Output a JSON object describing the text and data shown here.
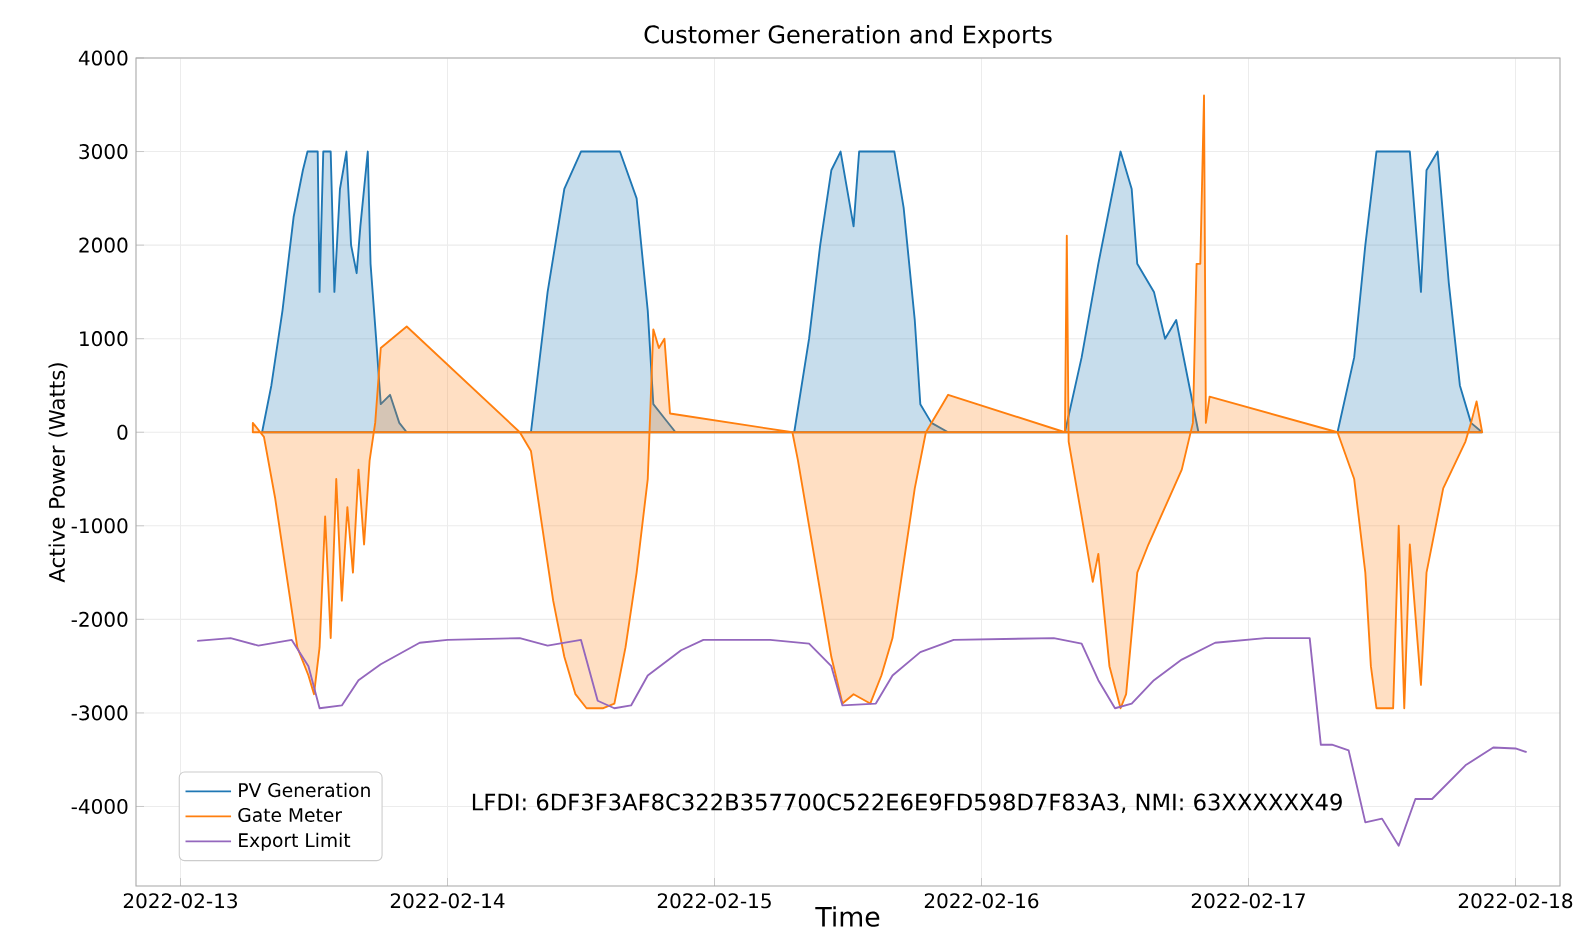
{
  "chart_data": {
    "type": "line",
    "title": "Customer Generation and Exports",
    "xlabel": "Time",
    "ylabel": "Active Power (Watts)",
    "xlim": [
      "2022-02-12T20:00",
      "2022-02-18T04:00"
    ],
    "ylim": [
      -4850,
      4000
    ],
    "xticks": [
      "2022-02-13",
      "2022-02-14",
      "2022-02-15",
      "2022-02-16",
      "2022-02-17",
      "2022-02-18"
    ],
    "yticks": [
      -4000,
      -3000,
      -2000,
      -1000,
      0,
      1000,
      2000,
      3000,
      4000
    ],
    "grid": true,
    "legend": "bottom left",
    "marker": "none",
    "annotations": [
      "LFDI: 6DF3F3AF8C322B357700C522E6E9FD598D7F83A3, NMI: 63XXXXXX49"
    ],
    "series": [
      {
        "name": "PV Generation",
        "type": "area",
        "color": "#1f77b4",
        "x": [
          "2022-02-13T07:20",
          "2022-02-13T08:10",
          "2022-02-13T09:10",
          "2022-02-13T10:10",
          "2022-02-13T11:00",
          "2022-02-13T11:25",
          "2022-02-13T12:20",
          "2022-02-13T12:30",
          "2022-02-13T12:50",
          "2022-02-13T13:30",
          "2022-02-13T13:50",
          "2022-02-13T14:20",
          "2022-02-13T14:55",
          "2022-02-13T15:20",
          "2022-02-13T15:50",
          "2022-02-13T16:10",
          "2022-02-13T16:50",
          "2022-02-13T17:05",
          "2022-02-13T17:35",
          "2022-02-13T18:00",
          "2022-02-13T18:50",
          "2022-02-13T19:40",
          "2022-02-13T20:20",
          "2022-02-14T07:30",
          "2022-02-14T09:00",
          "2022-02-14T10:30",
          "2022-02-14T12:00",
          "2022-02-14T15:30",
          "2022-02-14T17:00",
          "2022-02-14T18:00",
          "2022-02-14T18:30",
          "2022-02-14T19:30",
          "2022-02-14T20:30",
          "2022-02-15T07:10",
          "2022-02-15T08:30",
          "2022-02-15T09:30",
          "2022-02-15T10:30",
          "2022-02-15T11:20",
          "2022-02-15T12:30",
          "2022-02-15T13:00",
          "2022-02-15T16:10",
          "2022-02-15T17:00",
          "2022-02-15T18:00",
          "2022-02-15T18:30",
          "2022-02-15T19:30",
          "2022-02-15T21:00",
          "2022-02-16T07:30",
          "2022-02-16T09:00",
          "2022-02-16T10:30",
          "2022-02-16T12:30",
          "2022-02-16T13:30",
          "2022-02-16T14:00",
          "2022-02-16T15:30",
          "2022-02-16T16:30",
          "2022-02-16T17:30",
          "2022-02-16T18:30",
          "2022-02-16T19:30",
          "2022-02-17T08:00",
          "2022-02-17T09:30",
          "2022-02-17T10:30",
          "2022-02-17T11:30",
          "2022-02-17T14:30",
          "2022-02-17T15:30",
          "2022-02-17T16:00",
          "2022-02-17T17:00",
          "2022-02-17T17:30",
          "2022-02-17T18:00",
          "2022-02-17T19:00",
          "2022-02-17T20:00",
          "2022-02-17T21:00"
        ],
        "values": [
          0,
          500,
          1300,
          2300,
          2800,
          3000,
          3000,
          1500,
          3000,
          3000,
          1500,
          2600,
          3000,
          2000,
          1700,
          2200,
          3000,
          1800,
          1000,
          300,
          400,
          100,
          0,
          0,
          1500,
          2600,
          3000,
          3000,
          2500,
          1300,
          300,
          150,
          0,
          0,
          1000,
          2000,
          2800,
          3000,
          2200,
          3000,
          3000,
          2400,
          1200,
          300,
          100,
          0,
          0,
          800,
          1800,
          3000,
          2600,
          1800,
          1500,
          1000,
          1200,
          600,
          0,
          0,
          800,
          2000,
          3000,
          3000,
          1500,
          2800,
          3000,
          2300,
          1600,
          500,
          100,
          0
        ]
      },
      {
        "name": "Gate Meter",
        "type": "area",
        "color": "#ff7f0e",
        "x": [
          "2022-02-13T06:30",
          "2022-02-13T07:30",
          "2022-02-13T08:30",
          "2022-02-13T09:30",
          "2022-02-13T10:30",
          "2022-02-13T11:30",
          "2022-02-13T12:00",
          "2022-02-13T12:30",
          "2022-02-13T13:00",
          "2022-02-13T13:30",
          "2022-02-13T14:00",
          "2022-02-13T14:30",
          "2022-02-13T15:00",
          "2022-02-13T15:30",
          "2022-02-13T16:00",
          "2022-02-13T16:30",
          "2022-02-13T17:00",
          "2022-02-13T17:30",
          "2022-02-13T18:00",
          "2022-02-13T20:20",
          "2022-02-14T06:30",
          "2022-02-14T07:30",
          "2022-02-14T08:30",
          "2022-02-14T09:30",
          "2022-02-14T10:30",
          "2022-02-14T11:30",
          "2022-02-14T12:30",
          "2022-02-14T14:00",
          "2022-02-14T15:00",
          "2022-02-14T16:00",
          "2022-02-14T17:00",
          "2022-02-14T18:00",
          "2022-02-14T18:30",
          "2022-02-14T19:00",
          "2022-02-14T19:30",
          "2022-02-14T20:00",
          "2022-02-15T07:00",
          "2022-02-15T07:30",
          "2022-02-15T08:30",
          "2022-02-15T09:30",
          "2022-02-15T10:30",
          "2022-02-15T11:30",
          "2022-02-15T12:30",
          "2022-02-15T14:00",
          "2022-02-15T15:00",
          "2022-02-15T16:00",
          "2022-02-15T17:00",
          "2022-02-15T18:00",
          "2022-02-15T19:00",
          "2022-02-15T20:30",
          "2022-02-15T21:00",
          "2022-02-16T07:30",
          "2022-02-16T07:40",
          "2022-02-16T07:50",
          "2022-02-16T09:00",
          "2022-02-16T10:00",
          "2022-02-16T10:30",
          "2022-02-16T11:30",
          "2022-02-16T12:30",
          "2022-02-16T13:00",
          "2022-02-16T14:00",
          "2022-02-16T15:00",
          "2022-02-16T16:30",
          "2022-02-16T18:00",
          "2022-02-16T19:00",
          "2022-02-16T19:20",
          "2022-02-16T19:40",
          "2022-02-16T20:00",
          "2022-02-16T20:10",
          "2022-02-16T20:30",
          "2022-02-17T08:00",
          "2022-02-17T09:30",
          "2022-02-17T10:30",
          "2022-02-17T11:00",
          "2022-02-17T11:30",
          "2022-02-17T13:00",
          "2022-02-17T13:30",
          "2022-02-17T14:00",
          "2022-02-17T14:30",
          "2022-02-17T15:30",
          "2022-02-17T16:00",
          "2022-02-17T17:30",
          "2022-02-17T19:30",
          "2022-02-17T20:00",
          "2022-02-17T20:30",
          "2022-02-17T21:00"
        ],
        "values": [
          100,
          -50,
          -700,
          -1500,
          -2300,
          -2600,
          -2800,
          -2300,
          -900,
          -2200,
          -500,
          -1800,
          -800,
          -1500,
          -400,
          -1200,
          -300,
          100,
          900,
          1130,
          0,
          -200,
          -1000,
          -1800,
          -2400,
          -2800,
          -2950,
          -2950,
          -2900,
          -2300,
          -1500,
          -500,
          1100,
          900,
          1000,
          200,
          0,
          -300,
          -1000,
          -1700,
          -2400,
          -2900,
          -2800,
          -2900,
          -2600,
          -2200,
          -1400,
          -600,
          0,
          300,
          400,
          0,
          2100,
          -100,
          -900,
          -1600,
          -1300,
          -2500,
          -2950,
          -2800,
          -1500,
          -1200,
          -800,
          -400,
          100,
          1800,
          1800,
          3600,
          100,
          380,
          0,
          -500,
          -1500,
          -2500,
          -2950,
          -2950,
          -1000,
          -2950,
          -1200,
          -2700,
          -1500,
          -600,
          -100,
          100,
          330,
          0
        ]
      },
      {
        "name": "Export Limit",
        "color": "#9467bd",
        "x": [
          "2022-02-13T01:30",
          "2022-02-13T04:30",
          "2022-02-13T07:00",
          "2022-02-13T10:00",
          "2022-02-13T11:30",
          "2022-02-13T12:30",
          "2022-02-13T14:30",
          "2022-02-13T16:00",
          "2022-02-13T18:00",
          "2022-02-13T21:30",
          "2022-02-14T00:00",
          "2022-02-14T06:30",
          "2022-02-14T09:00",
          "2022-02-14T12:00",
          "2022-02-14T13:30",
          "2022-02-14T15:00",
          "2022-02-14T16:30",
          "2022-02-14T18:00",
          "2022-02-14T21:00",
          "2022-02-14T23:00",
          "2022-02-15T05:00",
          "2022-02-15T08:30",
          "2022-02-15T10:30",
          "2022-02-15T11:30",
          "2022-02-15T14:30",
          "2022-02-15T16:00",
          "2022-02-15T18:30",
          "2022-02-15T21:30",
          "2022-02-16T06:30",
          "2022-02-16T09:00",
          "2022-02-16T10:30",
          "2022-02-16T12:00",
          "2022-02-16T13:30",
          "2022-02-16T15:30",
          "2022-02-16T18:00",
          "2022-02-16T21:00",
          "2022-02-17T01:30",
          "2022-02-17T05:30",
          "2022-02-17T06:30",
          "2022-02-17T07:30",
          "2022-02-17T09:00",
          "2022-02-17T10:30",
          "2022-02-17T12:00",
          "2022-02-17T13:30",
          "2022-02-17T15:00",
          "2022-02-17T16:30",
          "2022-02-17T19:30",
          "2022-02-17T22:00",
          "2022-02-18T00:00",
          "2022-02-18T01:00"
        ],
        "values": [
          -2230,
          -2200,
          -2280,
          -2220,
          -2500,
          -2950,
          -2920,
          -2650,
          -2480,
          -2250,
          -2220,
          -2200,
          -2280,
          -2220,
          -2870,
          -2950,
          -2920,
          -2600,
          -2330,
          -2220,
          -2220,
          -2260,
          -2500,
          -2920,
          -2900,
          -2600,
          -2350,
          -2220,
          -2200,
          -2260,
          -2650,
          -2950,
          -2900,
          -2650,
          -2430,
          -2250,
          -2200,
          -2200,
          -3340,
          -3340,
          -3400,
          -4170,
          -4130,
          -4420,
          -3920,
          -3920,
          -3560,
          -3370,
          -3380,
          -3420
        ]
      }
    ]
  }
}
